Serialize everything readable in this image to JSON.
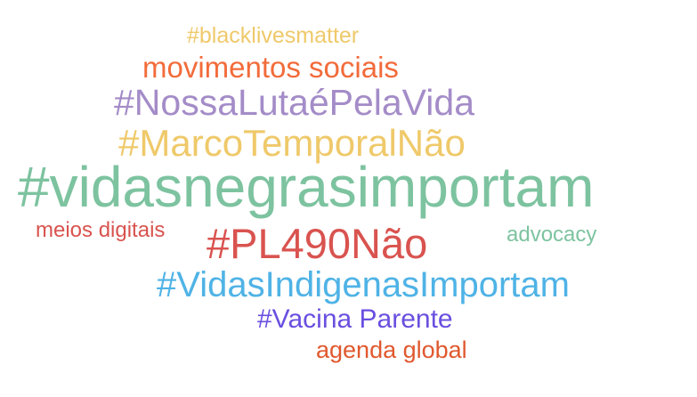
{
  "words": [
    {
      "text": "#blacklivesmatter",
      "color": "#EFC96A"
    },
    {
      "text": "movimentos sociais",
      "color": "#F26B3A"
    },
    {
      "text": "#NossaLutaéPelaVida",
      "color": "#A48CC8"
    },
    {
      "text": "#MarcoTemporalNão",
      "color": "#EFC96A"
    },
    {
      "text": "#vidasnegrasimportam",
      "color": "#7DC3A0"
    },
    {
      "text": "meios digitais",
      "color": "#D9534F"
    },
    {
      "text": "#PL490Não",
      "color": "#D9534F"
    },
    {
      "text": "advocacy",
      "color": "#7DC3A0"
    },
    {
      "text": "#VidasIndigenasImportam",
      "color": "#4FB3E6"
    },
    {
      "text": "#Vacina Parente",
      "color": "#6A4FE0"
    },
    {
      "text": "agenda global",
      "color": "#E0582E"
    }
  ]
}
